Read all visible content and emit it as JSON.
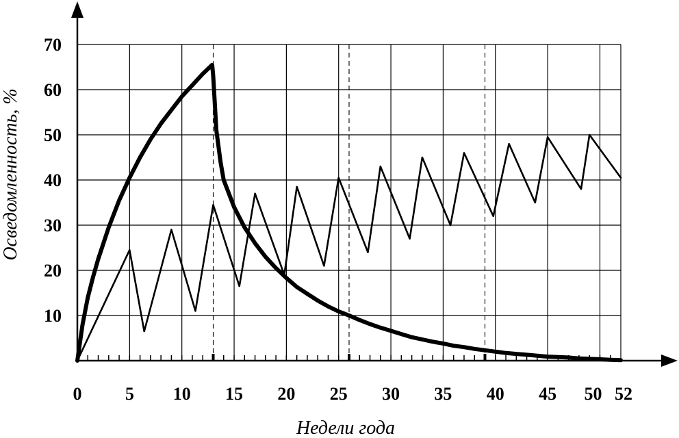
{
  "chart_data": {
    "type": "line",
    "title": "",
    "xlabel": "Недели года",
    "ylabel": "Осведомленность, %",
    "xlim": [
      0,
      52
    ],
    "ylim": [
      0,
      70
    ],
    "x_ticks": [
      0,
      5,
      10,
      15,
      20,
      25,
      30,
      35,
      40,
      45,
      50,
      52
    ],
    "y_ticks": [
      10,
      20,
      30,
      40,
      50,
      60,
      70
    ],
    "grid": true,
    "quarter_markers": [
      13,
      26,
      39
    ],
    "series": [
      {
        "style": "thick",
        "color": "#000000",
        "x": [
          0,
          0.5,
          1,
          1.5,
          2,
          3,
          4,
          5,
          6,
          7,
          8,
          9,
          10,
          11,
          12,
          12.9,
          13,
          13.3,
          13.7,
          14,
          15,
          16,
          17,
          18,
          19,
          20,
          21,
          22,
          23,
          24,
          25,
          26,
          27,
          28,
          29,
          30,
          31,
          32,
          33,
          34,
          35,
          36,
          37,
          38,
          39,
          40,
          41,
          42,
          43,
          44,
          45,
          46,
          47,
          48,
          49,
          50,
          51,
          52
        ],
        "y": [
          0,
          8,
          14,
          18.5,
          22.5,
          29.5,
          35.5,
          40.5,
          45,
          49,
          52.5,
          55.5,
          58.5,
          61,
          63.5,
          65.5,
          63,
          51,
          44,
          40,
          34,
          29.5,
          26,
          23,
          20.5,
          18.3,
          16.3,
          14.8,
          13.3,
          12,
          10.9,
          10,
          9,
          8.1,
          7.3,
          6.6,
          5.9,
          5.2,
          4.7,
          4.2,
          3.8,
          3.3,
          3,
          2.6,
          2.3,
          2,
          1.7,
          1.5,
          1.3,
          1.1,
          0.9,
          0.8,
          0.7,
          0.5,
          0.4,
          0.3,
          0.2,
          0.1
        ]
      },
      {
        "style": "thin",
        "color": "#000000",
        "x": [
          0,
          5,
          6.4,
          9,
          11.3,
          13,
          15.5,
          17,
          19.8,
          21,
          23.6,
          25,
          27.8,
          29,
          31.8,
          33,
          35.7,
          37,
          39.8,
          41.3,
          43.8,
          45,
          48.2,
          49,
          52
        ],
        "y": [
          0,
          24.5,
          6.5,
          29,
          11,
          34.5,
          16.5,
          37,
          19,
          38.5,
          21,
          40.5,
          24,
          43,
          27,
          45,
          30,
          46,
          32,
          48,
          35,
          49.5,
          38,
          50,
          40.5
        ]
      }
    ]
  }
}
